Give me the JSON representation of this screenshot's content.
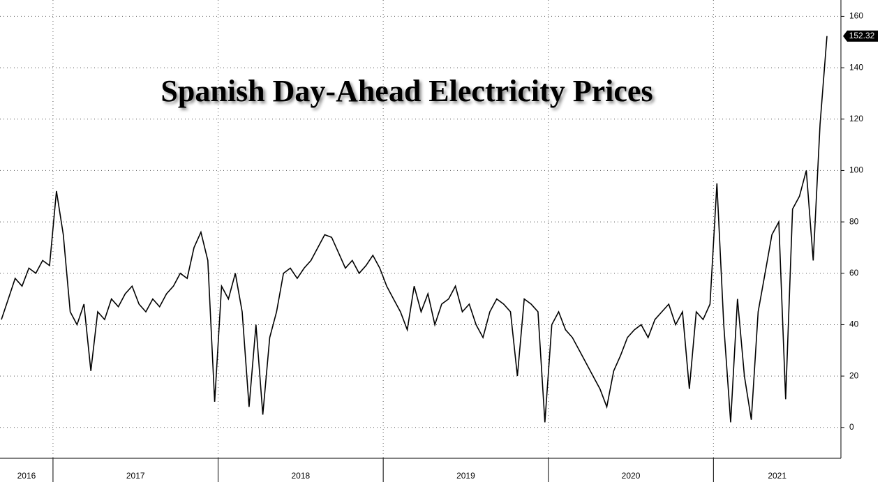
{
  "chart_data": {
    "type": "line",
    "title": "Spanish Day-Ahead Electricity Prices",
    "categories": [
      "2016",
      "2016",
      "2016",
      "2016",
      "2016",
      "2016",
      "2016",
      "2016",
      "2017",
      "2017",
      "2017",
      "2017",
      "2017",
      "2017",
      "2017",
      "2017",
      "2017",
      "2017",
      "2017",
      "2017",
      "2017",
      "2017",
      "2017",
      "2017",
      "2017",
      "2017",
      "2017",
      "2017",
      "2017",
      "2017",
      "2017",
      "2017",
      "2018",
      "2018",
      "2018",
      "2018",
      "2018",
      "2018",
      "2018",
      "2018",
      "2018",
      "2018",
      "2018",
      "2018",
      "2018",
      "2018",
      "2018",
      "2018",
      "2018",
      "2018",
      "2018",
      "2018",
      "2018",
      "2018",
      "2018",
      "2018",
      "2019",
      "2019",
      "2019",
      "2019",
      "2019",
      "2019",
      "2019",
      "2019",
      "2019",
      "2019",
      "2019",
      "2019",
      "2019",
      "2019",
      "2019",
      "2019",
      "2019",
      "2019",
      "2019",
      "2019",
      "2019",
      "2019",
      "2019",
      "2019",
      "2020",
      "2020",
      "2020",
      "2020",
      "2020",
      "2020",
      "2020",
      "2020",
      "2020",
      "2020",
      "2020",
      "2020",
      "2020",
      "2020",
      "2020",
      "2020",
      "2020",
      "2020",
      "2020",
      "2020",
      "2020",
      "2020",
      "2020",
      "2020",
      "2021",
      "2021",
      "2021",
      "2021",
      "2021",
      "2021",
      "2021",
      "2021",
      "2021",
      "2021",
      "2021",
      "2021",
      "2021",
      "2021",
      "2021",
      "2021",
      "2021"
    ],
    "values": [
      42,
      50,
      58,
      55,
      62,
      60,
      65,
      63,
      92,
      75,
      45,
      40,
      48,
      22,
      45,
      42,
      50,
      47,
      52,
      55,
      48,
      45,
      50,
      47,
      52,
      55,
      60,
      58,
      70,
      76,
      65,
      10,
      55,
      50,
      60,
      45,
      8,
      40,
      5,
      35,
      45,
      60,
      62,
      58,
      62,
      65,
      70,
      75,
      74,
      68,
      62,
      65,
      60,
      63,
      67,
      62,
      55,
      50,
      45,
      38,
      55,
      45,
      52,
      40,
      48,
      50,
      55,
      45,
      48,
      40,
      35,
      45,
      50,
      48,
      45,
      20,
      50,
      48,
      45,
      2,
      40,
      45,
      38,
      35,
      30,
      25,
      20,
      15,
      8,
      22,
      28,
      35,
      38,
      40,
      35,
      42,
      45,
      48,
      40,
      45,
      15,
      45,
      42,
      48,
      95,
      40,
      2,
      50,
      20,
      3,
      45,
      60,
      75,
      80,
      11,
      85,
      90,
      100,
      65,
      118,
      152.32
    ],
    "color": "#000000",
    "ylim": [
      -12,
      165
    ],
    "yticks": [
      0,
      20,
      40,
      60,
      80,
      100,
      120,
      140,
      160
    ],
    "grid": true
  }
}
